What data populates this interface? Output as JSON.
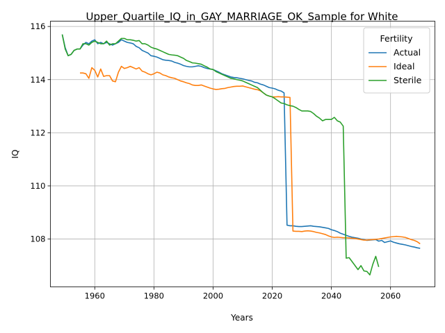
{
  "chart_data": {
    "type": "line",
    "title": "Upper_Quartile_IQ_in_GAY_MARRIAGE_OK_Sample for White",
    "xlabel": "Years",
    "ylabel": "IQ",
    "xlim": [
      1945,
      2075
    ],
    "ylim": [
      106.2,
      116.2
    ],
    "xticks": [
      1960,
      1980,
      2000,
      2020,
      2040,
      2060
    ],
    "yticks": [
      108,
      110,
      112,
      114,
      116
    ],
    "grid": true,
    "legend": {
      "title": "Fertility",
      "placement": "top-right"
    },
    "series": [
      {
        "name": "Actual",
        "color": "#1f77b4",
        "x": [
          1949,
          1950,
          1951,
          1952,
          1953,
          1954,
          1955,
          1956,
          1957,
          1958,
          1959,
          1960,
          1961,
          1962,
          1963,
          1964,
          1965,
          1966,
          1967,
          1968,
          1969,
          1970,
          1971,
          1972,
          1973,
          1974,
          1975,
          1976,
          1977,
          1978,
          1979,
          1980,
          1981,
          1982,
          1983,
          1984,
          1985,
          1986,
          1987,
          1988,
          1989,
          1990,
          1991,
          1992,
          1993,
          1994,
          1995,
          1996,
          1997,
          1998,
          1999,
          2000,
          2001,
          2002,
          2003,
          2004,
          2005,
          2006,
          2007,
          2008,
          2009,
          2010,
          2011,
          2012,
          2013,
          2014,
          2015,
          2016,
          2017,
          2018,
          2019,
          2020,
          2021,
          2022,
          2023,
          2024,
          2025,
          2026,
          2027,
          2028,
          2029,
          2030,
          2031,
          2032,
          2033,
          2034,
          2035,
          2036,
          2037,
          2038,
          2039,
          2040,
          2041,
          2042,
          2043,
          2044,
          2045,
          2046,
          2047,
          2048,
          2049,
          2050,
          2051,
          2052,
          2053,
          2054,
          2055,
          2056,
          2057,
          2058,
          2059,
          2060,
          2061,
          2062,
          2063,
          2064,
          2065,
          2066,
          2067,
          2068,
          2069,
          2070
        ],
        "y": [
          115.7,
          115.2,
          114.9,
          114.95,
          115.1,
          115.15,
          115.15,
          115.3,
          115.4,
          115.35,
          115.45,
          115.5,
          115.35,
          115.4,
          115.35,
          115.4,
          115.35,
          115.3,
          115.35,
          115.4,
          115.5,
          115.45,
          115.4,
          115.38,
          115.35,
          115.25,
          115.2,
          115.1,
          115.05,
          115.0,
          114.9,
          114.88,
          114.85,
          114.8,
          114.75,
          114.73,
          114.72,
          114.7,
          114.65,
          114.62,
          114.58,
          114.53,
          114.5,
          114.48,
          114.48,
          114.5,
          114.52,
          114.5,
          114.45,
          114.42,
          114.4,
          114.38,
          114.33,
          114.28,
          114.22,
          114.18,
          114.14,
          114.1,
          114.08,
          114.07,
          114.05,
          114.03,
          114.0,
          113.97,
          113.95,
          113.9,
          113.88,
          113.83,
          113.8,
          113.75,
          113.7,
          113.68,
          113.65,
          113.6,
          113.57,
          113.5,
          108.52,
          108.5,
          108.5,
          108.48,
          108.47,
          108.47,
          108.48,
          108.49,
          108.5,
          108.48,
          108.47,
          108.46,
          108.44,
          108.42,
          108.4,
          108.35,
          108.32,
          108.28,
          108.22,
          108.18,
          108.14,
          108.1,
          108.07,
          108.05,
          108.03,
          108.0,
          107.98,
          107.95,
          107.96,
          107.97,
          107.98,
          107.92,
          107.95,
          107.87,
          107.9,
          107.93,
          107.88,
          107.85,
          107.82,
          107.8,
          107.78,
          107.75,
          107.72,
          107.7,
          107.67,
          107.65
        ]
      },
      {
        "name": "Ideal",
        "color": "#ff7f0e",
        "x": [
          1955,
          1956,
          1957,
          1958,
          1959,
          1960,
          1961,
          1962,
          1963,
          1964,
          1965,
          1966,
          1967,
          1968,
          1969,
          1970,
          1971,
          1972,
          1973,
          1974,
          1975,
          1976,
          1977,
          1978,
          1979,
          1980,
          1981,
          1982,
          1983,
          1984,
          1985,
          1986,
          1987,
          1988,
          1989,
          1990,
          1991,
          1992,
          1993,
          1994,
          1995,
          1996,
          1997,
          1998,
          1999,
          2000,
          2001,
          2002,
          2003,
          2004,
          2005,
          2006,
          2007,
          2008,
          2009,
          2010,
          2011,
          2012,
          2013,
          2014,
          2015,
          2016,
          2017,
          2018,
          2019,
          2020,
          2021,
          2022,
          2023,
          2024,
          2025,
          2026,
          2027,
          2028,
          2029,
          2030,
          2031,
          2032,
          2033,
          2034,
          2035,
          2036,
          2037,
          2038,
          2039,
          2040,
          2041,
          2042,
          2043,
          2044,
          2045,
          2046,
          2047,
          2048,
          2049,
          2050,
          2051,
          2052,
          2053,
          2054,
          2055,
          2056,
          2057,
          2058,
          2059,
          2060,
          2061,
          2062,
          2063,
          2064,
          2065,
          2066,
          2067,
          2068,
          2069,
          2070
        ],
        "y": [
          114.25,
          114.25,
          114.22,
          114.05,
          114.45,
          114.35,
          114.1,
          114.4,
          114.12,
          114.15,
          114.15,
          113.95,
          113.92,
          114.28,
          114.5,
          114.42,
          114.45,
          114.5,
          114.45,
          114.4,
          114.45,
          114.32,
          114.28,
          114.22,
          114.18,
          114.22,
          114.28,
          114.25,
          114.18,
          114.15,
          114.1,
          114.07,
          114.05,
          114.0,
          113.95,
          113.92,
          113.88,
          113.85,
          113.8,
          113.78,
          113.78,
          113.8,
          113.76,
          113.72,
          113.68,
          113.65,
          113.63,
          113.64,
          113.66,
          113.67,
          113.7,
          113.72,
          113.74,
          113.75,
          113.75,
          113.76,
          113.73,
          113.7,
          113.67,
          113.64,
          113.62,
          113.58,
          113.5,
          113.42,
          113.38,
          113.35,
          113.35,
          113.36,
          113.35,
          113.35,
          113.34,
          113.33,
          108.3,
          108.29,
          108.29,
          108.28,
          108.3,
          108.31,
          108.3,
          108.28,
          108.25,
          108.23,
          108.2,
          108.17,
          108.12,
          108.08,
          108.06,
          108.07,
          108.06,
          108.05,
          108.05,
          108.04,
          108.03,
          108.02,
          108.0,
          107.98,
          107.96,
          107.96,
          107.97,
          107.98,
          107.99,
          108.0,
          108.02,
          108.04,
          108.06,
          108.08,
          108.09,
          108.1,
          108.09,
          108.08,
          108.06,
          108.02,
          107.98,
          107.95,
          107.9,
          107.82
        ]
      },
      {
        "name": "Sterile",
        "color": "#2ca02c",
        "x": [
          1949,
          1950,
          1951,
          1952,
          1953,
          1954,
          1955,
          1956,
          1957,
          1958,
          1959,
          1960,
          1961,
          1962,
          1963,
          1964,
          1965,
          1966,
          1967,
          1968,
          1969,
          1970,
          1971,
          1972,
          1973,
          1974,
          1975,
          1976,
          1977,
          1978,
          1979,
          1980,
          1981,
          1982,
          1983,
          1984,
          1985,
          1986,
          1987,
          1988,
          1989,
          1990,
          1991,
          1992,
          1993,
          1994,
          1995,
          1996,
          1997,
          1998,
          1999,
          2000,
          2001,
          2002,
          2003,
          2004,
          2005,
          2006,
          2007,
          2008,
          2009,
          2010,
          2011,
          2012,
          2013,
          2014,
          2015,
          2016,
          2017,
          2018,
          2019,
          2020,
          2021,
          2022,
          2023,
          2024,
          2025,
          2026,
          2027,
          2028,
          2029,
          2030,
          2031,
          2032,
          2033,
          2034,
          2035,
          2036,
          2037,
          2038,
          2039,
          2040,
          2041,
          2042,
          2043,
          2044,
          2045,
          2046,
          2047,
          2048,
          2049,
          2050,
          2051,
          2052,
          2053,
          2054,
          2055,
          2056
        ],
        "y": [
          115.7,
          115.15,
          114.9,
          114.95,
          115.1,
          115.15,
          115.15,
          115.35,
          115.35,
          115.3,
          115.4,
          115.45,
          115.4,
          115.35,
          115.35,
          115.45,
          115.3,
          115.35,
          115.35,
          115.45,
          115.55,
          115.55,
          115.5,
          115.5,
          115.48,
          115.45,
          115.47,
          115.35,
          115.35,
          115.3,
          115.22,
          115.18,
          115.15,
          115.1,
          115.05,
          115.0,
          114.95,
          114.93,
          114.92,
          114.9,
          114.85,
          114.8,
          114.72,
          114.68,
          114.63,
          114.62,
          114.6,
          114.58,
          114.52,
          114.47,
          114.4,
          114.38,
          114.3,
          114.25,
          114.2,
          114.15,
          114.1,
          114.05,
          114.03,
          114.0,
          113.98,
          113.95,
          113.9,
          113.85,
          113.8,
          113.75,
          113.7,
          113.6,
          113.5,
          113.42,
          113.38,
          113.35,
          113.28,
          113.2,
          113.12,
          113.1,
          113.05,
          113.02,
          113.0,
          112.95,
          112.88,
          112.82,
          112.82,
          112.82,
          112.8,
          112.72,
          112.62,
          112.55,
          112.45,
          112.5,
          112.5,
          112.5,
          112.58,
          112.45,
          112.4,
          112.25,
          107.28,
          107.3,
          107.15,
          107.0,
          106.85,
          107.0,
          106.8,
          106.78,
          106.65,
          107.05,
          107.35,
          106.95
        ]
      }
    ]
  }
}
